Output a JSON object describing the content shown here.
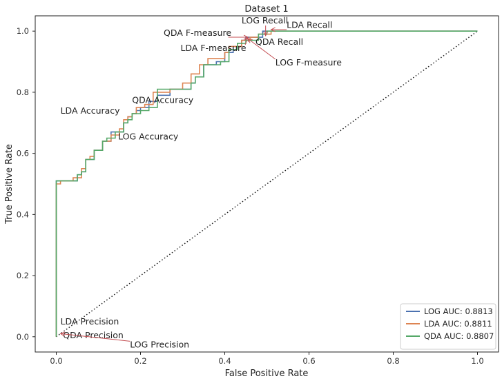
{
  "chart_data": {
    "type": "line",
    "title": "Dataset 1",
    "xlabel": "False Positive Rate",
    "ylabel": "True Positive Rate",
    "xlim": [
      -0.05,
      1.05
    ],
    "ylim": [
      -0.05,
      1.05
    ],
    "xticks": [
      "0.0",
      "0.2",
      "0.4",
      "0.6",
      "0.8",
      "1.0"
    ],
    "yticks": [
      "0.0",
      "0.2",
      "0.4",
      "0.6",
      "0.8",
      "1.0"
    ],
    "grid": false,
    "legend_position": "lower-right",
    "diagonal": {
      "x": [
        0,
        1
      ],
      "y": [
        0,
        1
      ],
      "style": "dotted",
      "color": "#222222"
    },
    "series": [
      {
        "name": "LOG AUC: 0.8813",
        "color": "#4c72b0",
        "x": [
          0,
          0,
          0.05,
          0.05,
          0.06,
          0.06,
          0.07,
          0.07,
          0.09,
          0.09,
          0.11,
          0.11,
          0.13,
          0.13,
          0.14,
          0.14,
          0.16,
          0.16,
          0.17,
          0.17,
          0.18,
          0.18,
          0.19,
          0.19,
          0.2,
          0.2,
          0.22,
          0.22,
          0.24,
          0.24,
          0.27,
          0.27,
          0.32,
          0.32,
          0.33,
          0.33,
          0.35,
          0.35,
          0.38,
          0.38,
          0.4,
          0.4,
          0.42,
          0.42,
          0.44,
          0.44,
          0.45,
          0.45,
          0.47,
          0.47,
          0.49,
          0.49,
          0.5,
          0.5,
          1.0
        ],
        "y": [
          0,
          0.51,
          0.51,
          0.53,
          0.53,
          0.54,
          0.54,
          0.58,
          0.58,
          0.61,
          0.61,
          0.64,
          0.64,
          0.67,
          0.67,
          0.67,
          0.67,
          0.7,
          0.7,
          0.72,
          0.72,
          0.73,
          0.73,
          0.74,
          0.74,
          0.75,
          0.75,
          0.77,
          0.77,
          0.79,
          0.79,
          0.81,
          0.81,
          0.83,
          0.83,
          0.85,
          0.85,
          0.89,
          0.89,
          0.9,
          0.9,
          0.93,
          0.93,
          0.95,
          0.95,
          0.97,
          0.97,
          0.98,
          0.98,
          0.98,
          0.98,
          1.0,
          1.0,
          1.0,
          1.0
        ]
      },
      {
        "name": "LDA AUC: 0.8811",
        "color": "#dd8452",
        "x": [
          0,
          0,
          0.01,
          0.01,
          0.04,
          0.04,
          0.06,
          0.06,
          0.07,
          0.07,
          0.08,
          0.08,
          0.09,
          0.09,
          0.11,
          0.11,
          0.13,
          0.13,
          0.15,
          0.15,
          0.16,
          0.16,
          0.17,
          0.17,
          0.18,
          0.18,
          0.19,
          0.19,
          0.21,
          0.21,
          0.23,
          0.23,
          0.27,
          0.27,
          0.3,
          0.3,
          0.32,
          0.32,
          0.34,
          0.34,
          0.36,
          0.36,
          0.4,
          0.4,
          0.41,
          0.41,
          0.44,
          0.44,
          0.46,
          0.46,
          0.48,
          0.48,
          0.51,
          0.51,
          1.0
        ],
        "y": [
          0,
          0.5,
          0.5,
          0.51,
          0.51,
          0.52,
          0.52,
          0.55,
          0.55,
          0.58,
          0.58,
          0.59,
          0.59,
          0.61,
          0.61,
          0.64,
          0.64,
          0.66,
          0.66,
          0.68,
          0.68,
          0.71,
          0.71,
          0.72,
          0.72,
          0.73,
          0.73,
          0.75,
          0.75,
          0.76,
          0.76,
          0.8,
          0.8,
          0.81,
          0.81,
          0.83,
          0.83,
          0.86,
          0.86,
          0.89,
          0.89,
          0.91,
          0.91,
          0.93,
          0.93,
          0.95,
          0.95,
          0.97,
          0.97,
          0.98,
          0.98,
          0.99,
          0.99,
          1.0,
          1.0
        ]
      },
      {
        "name": "QDA AUC: 0.8807",
        "color": "#55a868",
        "x": [
          0,
          0,
          0.05,
          0.05,
          0.06,
          0.06,
          0.07,
          0.07,
          0.09,
          0.09,
          0.11,
          0.11,
          0.12,
          0.12,
          0.14,
          0.14,
          0.16,
          0.16,
          0.17,
          0.17,
          0.18,
          0.18,
          0.2,
          0.2,
          0.22,
          0.22,
          0.24,
          0.24,
          0.28,
          0.28,
          0.32,
          0.32,
          0.33,
          0.33,
          0.35,
          0.35,
          0.39,
          0.39,
          0.41,
          0.41,
          0.43,
          0.43,
          0.45,
          0.45,
          0.48,
          0.48,
          0.5,
          0.5,
          1.0
        ],
        "y": [
          0,
          0.51,
          0.51,
          0.53,
          0.53,
          0.54,
          0.54,
          0.58,
          0.58,
          0.61,
          0.61,
          0.64,
          0.64,
          0.65,
          0.65,
          0.67,
          0.67,
          0.7,
          0.7,
          0.71,
          0.71,
          0.73,
          0.73,
          0.74,
          0.74,
          0.75,
          0.75,
          0.81,
          0.81,
          0.81,
          0.81,
          0.83,
          0.83,
          0.85,
          0.85,
          0.89,
          0.89,
          0.9,
          0.9,
          0.94,
          0.94,
          0.96,
          0.96,
          0.97,
          0.97,
          0.99,
          0.99,
          1.0,
          1.0
        ]
      }
    ],
    "annotations": [
      {
        "text": "LOG Recall",
        "point": [
          0.497,
          0.985
        ],
        "text_at": [
          0.44,
          1.025
        ]
      },
      {
        "text": "LDA Recall",
        "point": [
          0.51,
          1.005
        ],
        "text_at": [
          0.547,
          1.01
        ]
      },
      {
        "text": "QDA F-measure",
        "point": [
          0.455,
          0.98
        ],
        "text_at": [
          0.255,
          0.985
        ]
      },
      {
        "text": "QDA Recall",
        "point": [
          0.475,
          0.983
        ],
        "text_at": [
          0.473,
          0.955
        ]
      },
      {
        "text": "LDA F-measure",
        "point": [
          0.455,
          0.98
        ],
        "text_at": [
          0.295,
          0.935
        ]
      },
      {
        "text": "LOG F-measure",
        "point": [
          0.455,
          0.975
        ],
        "text_at": [
          0.52,
          0.888
        ]
      },
      {
        "text": "QDA Accuracy",
        "point": [
          0.2,
          0.745
        ],
        "text_at": [
          0.18,
          0.765
        ]
      },
      {
        "text": "LDA Accuracy",
        "point": [
          0.155,
          0.715
        ],
        "text_at": [
          0.01,
          0.73
        ]
      },
      {
        "text": "LOG Accuracy",
        "point": [
          0.145,
          0.67
        ],
        "text_at": [
          0.147,
          0.645
        ]
      },
      {
        "text": "LDA Precision",
        "point": [
          0.01,
          0.02
        ],
        "text_at": [
          0.01,
          0.04
        ]
      },
      {
        "text": "QDA Precision",
        "point": [
          0.01,
          0.015
        ],
        "text_at": [
          0.016,
          -0.005
        ]
      },
      {
        "text": "LOG Precision",
        "point": [
          0.01,
          0.01
        ],
        "text_at": [
          0.175,
          -0.035
        ]
      }
    ]
  }
}
